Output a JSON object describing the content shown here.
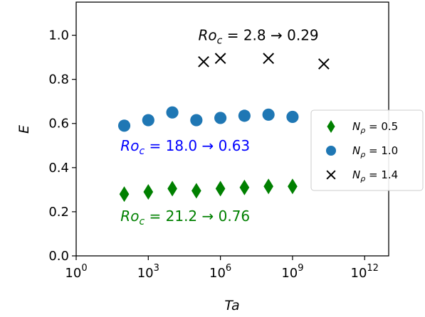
{
  "chart_data": {
    "type": "scatter",
    "title": "",
    "xlabel": "Ta",
    "ylabel": "E",
    "xscale": "log",
    "xlim": [
      1,
      10000000000000.0
    ],
    "ylim": [
      0,
      1.15
    ],
    "grid": false,
    "legend_position": "right",
    "x_ticks": [
      {
        "value": 1,
        "base": "10",
        "exp": "0"
      },
      {
        "value": 1000,
        "base": "10",
        "exp": "3"
      },
      {
        "value": 1000000,
        "base": "10",
        "exp": "6"
      },
      {
        "value": 1000000000,
        "base": "10",
        "exp": "9"
      },
      {
        "value": 1000000000000,
        "base": "10",
        "exp": "12"
      }
    ],
    "y_ticks": [
      {
        "value": 0.0,
        "label": "0.0"
      },
      {
        "value": 0.2,
        "label": "0.2"
      },
      {
        "value": 0.4,
        "label": "0.4"
      },
      {
        "value": 0.6,
        "label": "0.6"
      },
      {
        "value": 0.8,
        "label": "0.8"
      },
      {
        "value": 1.0,
        "label": "1.0"
      }
    ],
    "series": [
      {
        "legend_base": "N",
        "legend_sub": "ρ",
        "legend_value": " = 0.5",
        "color": "#008000",
        "marker": "diamond",
        "x": [
          100,
          1000,
          10000,
          100000,
          1000000,
          10000000,
          100000000,
          1000000000
        ],
        "y": [
          0.28,
          0.29,
          0.305,
          0.295,
          0.305,
          0.31,
          0.315,
          0.315
        ]
      },
      {
        "legend_base": "N",
        "legend_sub": "ρ",
        "legend_value": " = 1.0",
        "color": "#1f77b4",
        "marker": "circle",
        "x": [
          100,
          1000,
          10000,
          100000,
          1000000,
          10000000,
          100000000,
          1000000000
        ],
        "y": [
          0.59,
          0.615,
          0.65,
          0.615,
          0.625,
          0.635,
          0.64,
          0.63
        ]
      },
      {
        "legend_base": "N",
        "legend_sub": "ρ",
        "legend_value": " = 1.4",
        "color": "#000000",
        "marker": "x",
        "x": [
          200000,
          1000000,
          100000000,
          20000000000
        ],
        "y": [
          0.88,
          0.895,
          0.895,
          0.87
        ]
      }
    ],
    "annotations": [
      {
        "base": "Ro",
        "sub": "c",
        "value": " = 2.8 → 0.29",
        "color": "#000000",
        "x": 120000,
        "y": 1.0
      },
      {
        "base": "Ro",
        "sub": "c",
        "value": " = 18.0 → 0.63",
        "color": "#0000ff",
        "x": 70,
        "y": 0.5
      },
      {
        "base": "Ro",
        "sub": "c",
        "value": " = 21.2 → 0.76",
        "color": "#008000",
        "x": 70,
        "y": 0.18
      }
    ]
  }
}
